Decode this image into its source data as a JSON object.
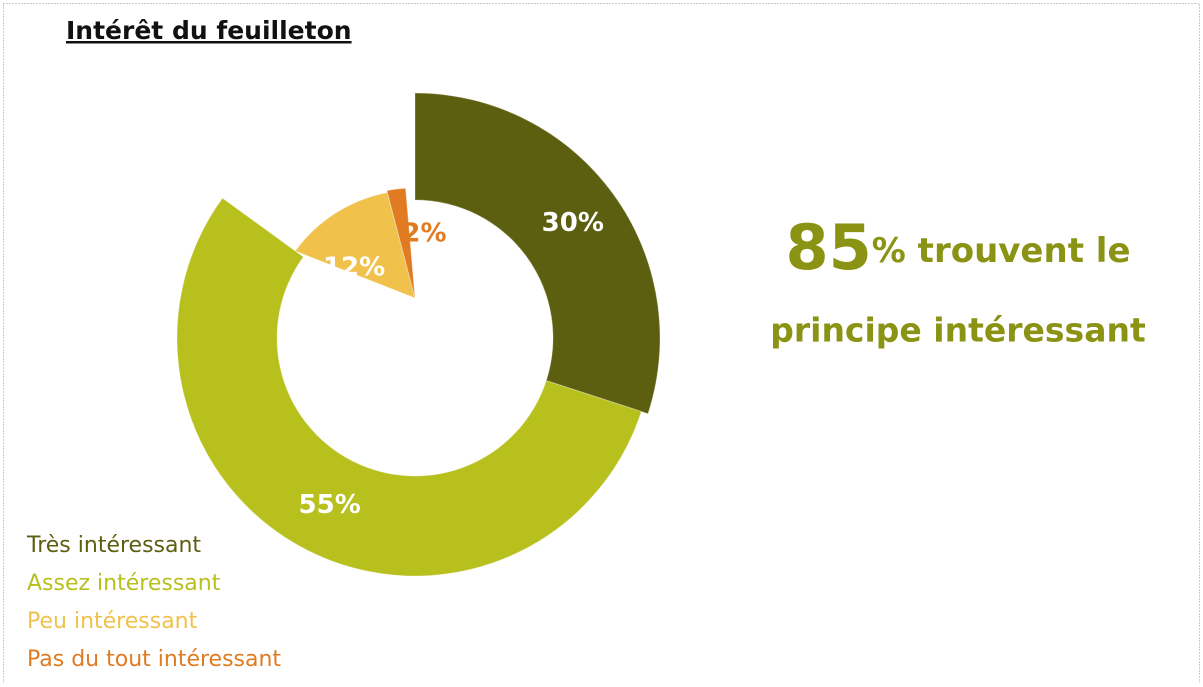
{
  "chart_data": {
    "type": "donut",
    "title": "Intérêt du feuilleton",
    "categories": [
      "Très intéressant",
      "Assez intéressant",
      "Peu intéressant",
      "Pas du tout intéressant"
    ],
    "values": [
      30,
      55,
      12,
      2
    ],
    "value_labels": [
      "30%",
      "55%",
      "12%",
      "2%"
    ],
    "colors": [
      "#5d5f10",
      "#b8c01e",
      "#f0c14b",
      "#e07b22"
    ],
    "annotation": {
      "number": "85",
      "suffix": "% trouvent le",
      "line2": "principe intéressant"
    }
  }
}
